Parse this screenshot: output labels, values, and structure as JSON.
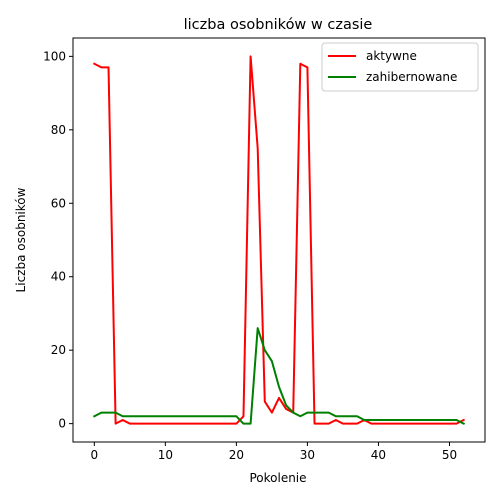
{
  "chart_data": {
    "type": "line",
    "title": "liczba osobników w czasie",
    "xlabel": "Pokolenie",
    "ylabel": "Liczba osobników",
    "xlim": [
      -3,
      55
    ],
    "ylim": [
      -5,
      105
    ],
    "xticks": [
      0,
      10,
      20,
      30,
      40,
      50
    ],
    "yticks": [
      0,
      20,
      40,
      60,
      80,
      100
    ],
    "grid": false,
    "legend_position": "top-right",
    "x": [
      0,
      1,
      2,
      3,
      4,
      5,
      6,
      7,
      8,
      9,
      10,
      11,
      12,
      13,
      14,
      15,
      16,
      17,
      18,
      19,
      20,
      21,
      22,
      23,
      24,
      25,
      26,
      27,
      28,
      29,
      30,
      31,
      32,
      33,
      34,
      35,
      36,
      37,
      38,
      39,
      40,
      41,
      42,
      43,
      44,
      45,
      46,
      47,
      48,
      49,
      50,
      51,
      52
    ],
    "series": [
      {
        "name": "aktywne",
        "color": "#ff0000",
        "values": [
          98,
          97,
          97,
          0,
          1,
          0,
          0,
          0,
          0,
          0,
          0,
          0,
          0,
          0,
          0,
          0,
          0,
          0,
          0,
          0,
          0,
          2,
          100,
          75,
          6,
          3,
          7,
          4,
          3,
          98,
          97,
          0,
          0,
          0,
          1,
          0,
          0,
          0,
          1,
          0,
          0,
          0,
          0,
          0,
          0,
          0,
          0,
          0,
          0,
          0,
          0,
          0,
          1
        ]
      },
      {
        "name": "zahibernowane",
        "color": "#008000",
        "values": [
          2,
          3,
          3,
          3,
          2,
          2,
          2,
          2,
          2,
          2,
          2,
          2,
          2,
          2,
          2,
          2,
          2,
          2,
          2,
          2,
          2,
          0,
          0,
          26,
          20,
          17,
          10,
          5,
          3,
          2,
          3,
          3,
          3,
          3,
          2,
          2,
          2,
          2,
          1,
          1,
          1,
          1,
          1,
          1,
          1,
          1,
          1,
          1,
          1,
          1,
          1,
          1,
          0
        ]
      }
    ]
  }
}
